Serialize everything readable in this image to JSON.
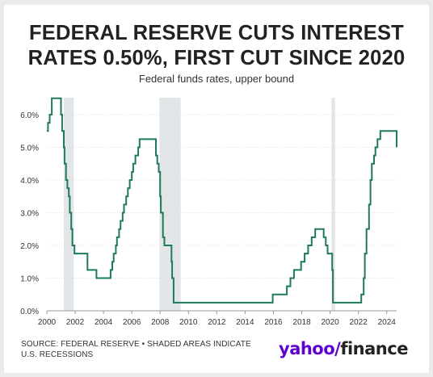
{
  "header": {
    "title_line1": "FEDERAL RESERVE CUTS INTEREST",
    "title_line2": "RATES 0.50%, FIRST CUT SINCE 2020",
    "subtitle": "Federal funds rates, upper bound"
  },
  "footer": {
    "source_line1": "SOURCE: FEDERAL RESERVE • SHADED AREAS INDICATE",
    "source_line2": "U.S. RECESSIONS",
    "logo_yahoo": "yahoo/",
    "logo_finance": "finance"
  },
  "colors": {
    "line": "#1f7a5c",
    "recession_shade": "#e3e6e9",
    "grid": "#dddddd",
    "text": "#333333",
    "brand": "#5f01d1"
  },
  "chart_data": {
    "type": "line",
    "title": "FEDERAL RESERVE CUTS INTEREST RATES 0.50%, FIRST CUT SINCE 2020",
    "subtitle": "Federal funds rates, upper bound",
    "xlabel": "",
    "ylabel": "",
    "xlim": [
      2000,
      2024.7
    ],
    "ylim": [
      0,
      6.5
    ],
    "x_ticks": [
      2000,
      2002,
      2004,
      2006,
      2008,
      2010,
      2012,
      2014,
      2016,
      2018,
      2020,
      2022,
      2024
    ],
    "x_tick_labels": [
      "2000",
      "2002",
      "2004",
      "2006",
      "2008",
      "2010",
      "2012",
      "2014",
      "2016",
      "2018",
      "2020",
      "2022",
      "2024"
    ],
    "y_ticks": [
      0,
      1,
      2,
      3,
      4,
      5,
      6
    ],
    "y_tick_labels": [
      "0.0%",
      "1.0%",
      "2.0%",
      "3.0%",
      "4.0%",
      "5.0%",
      "6.0%"
    ],
    "grid": true,
    "recessions": [
      [
        2001.2,
        2001.9
      ],
      [
        2007.95,
        2009.45
      ],
      [
        2020.1,
        2020.35
      ]
    ],
    "series": [
      {
        "step": true,
        "points": [
          [
            2000.0,
            5.5
          ],
          [
            2000.08,
            5.75
          ],
          [
            2000.2,
            6.0
          ],
          [
            2000.35,
            6.5
          ],
          [
            2001.0,
            6.0
          ],
          [
            2001.08,
            5.5
          ],
          [
            2001.2,
            5.0
          ],
          [
            2001.25,
            4.5
          ],
          [
            2001.35,
            4.0
          ],
          [
            2001.45,
            3.75
          ],
          [
            2001.55,
            3.5
          ],
          [
            2001.62,
            3.0
          ],
          [
            2001.72,
            2.5
          ],
          [
            2001.8,
            2.0
          ],
          [
            2001.95,
            1.75
          ],
          [
            2002.87,
            1.25
          ],
          [
            2003.5,
            1.0
          ],
          [
            2004.5,
            1.25
          ],
          [
            2004.62,
            1.5
          ],
          [
            2004.72,
            1.75
          ],
          [
            2004.87,
            2.0
          ],
          [
            2004.95,
            2.25
          ],
          [
            2005.1,
            2.5
          ],
          [
            2005.2,
            2.75
          ],
          [
            2005.35,
            3.0
          ],
          [
            2005.45,
            3.25
          ],
          [
            2005.6,
            3.5
          ],
          [
            2005.72,
            3.75
          ],
          [
            2005.85,
            4.0
          ],
          [
            2006.0,
            4.25
          ],
          [
            2006.1,
            4.5
          ],
          [
            2006.25,
            4.75
          ],
          [
            2006.45,
            5.0
          ],
          [
            2006.55,
            5.25
          ],
          [
            2007.7,
            4.75
          ],
          [
            2007.8,
            4.5
          ],
          [
            2007.9,
            4.25
          ],
          [
            2008.0,
            3.5
          ],
          [
            2008.05,
            3.0
          ],
          [
            2008.2,
            2.25
          ],
          [
            2008.3,
            2.0
          ],
          [
            2008.8,
            1.5
          ],
          [
            2008.85,
            1.0
          ],
          [
            2008.95,
            0.25
          ],
          [
            2015.95,
            0.5
          ],
          [
            2016.95,
            0.75
          ],
          [
            2017.2,
            1.0
          ],
          [
            2017.45,
            1.25
          ],
          [
            2017.95,
            1.5
          ],
          [
            2018.2,
            1.75
          ],
          [
            2018.45,
            2.0
          ],
          [
            2018.7,
            2.25
          ],
          [
            2018.95,
            2.5
          ],
          [
            2019.55,
            2.25
          ],
          [
            2019.7,
            2.0
          ],
          [
            2019.82,
            1.75
          ],
          [
            2020.15,
            1.25
          ],
          [
            2020.2,
            0.25
          ],
          [
            2022.2,
            0.5
          ],
          [
            2022.37,
            1.0
          ],
          [
            2022.45,
            1.75
          ],
          [
            2022.57,
            2.5
          ],
          [
            2022.75,
            3.25
          ],
          [
            2022.85,
            4.0
          ],
          [
            2022.95,
            4.5
          ],
          [
            2023.1,
            4.75
          ],
          [
            2023.2,
            5.0
          ],
          [
            2023.35,
            5.25
          ],
          [
            2023.55,
            5.5
          ],
          [
            2024.7,
            5.0
          ]
        ]
      }
    ]
  }
}
